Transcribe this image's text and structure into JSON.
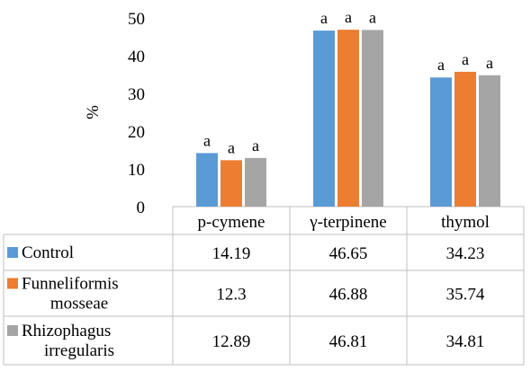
{
  "chart_data": {
    "type": "bar",
    "ylabel": "%",
    "ylim": [
      0,
      50
    ],
    "yticks": [
      0,
      10,
      20,
      30,
      40,
      50
    ],
    "categories": [
      "p-cymene",
      "γ-terpinene",
      "thymol"
    ],
    "series": [
      {
        "name": "Control",
        "lines": [
          "Control"
        ],
        "color": "#5b9bd5",
        "values": [
          14.19,
          46.65,
          34.23
        ],
        "labels": [
          "14.19",
          "46.65",
          "34.23"
        ],
        "letters": [
          "a",
          "a",
          "a"
        ]
      },
      {
        "name": "Funneliformis mosseae",
        "lines": [
          "Funneliformis",
          "mosseae"
        ],
        "color": "#ed7d31",
        "values": [
          12.3,
          46.88,
          35.74
        ],
        "labels": [
          "12.3",
          "46.88",
          "35.74"
        ],
        "letters": [
          "a",
          "a",
          "a"
        ]
      },
      {
        "name": "Rhizophagus irregularis",
        "lines": [
          "Rhizophagus",
          "irregularis"
        ],
        "color": "#a5a5a5",
        "values": [
          12.89,
          46.81,
          34.81
        ],
        "labels": [
          "12.89",
          "46.81",
          "34.81"
        ],
        "letters": [
          "a",
          "a",
          "a"
        ]
      }
    ],
    "grid": false,
    "legend": "data-table"
  }
}
